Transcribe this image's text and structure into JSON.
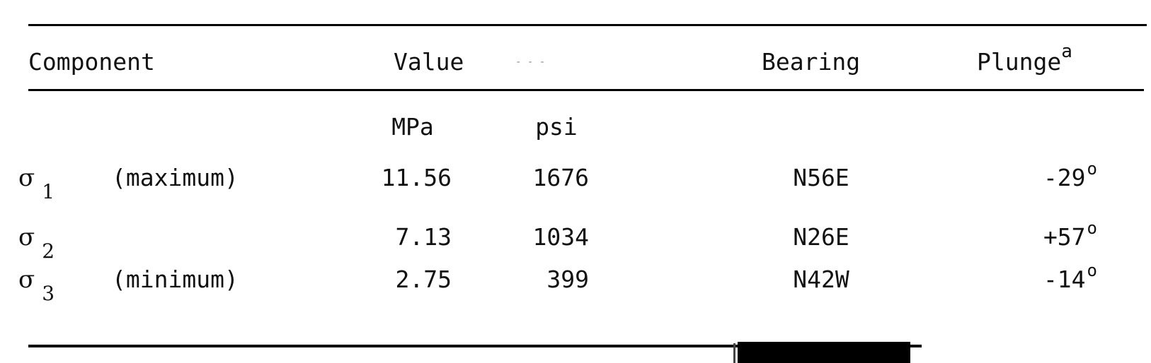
{
  "table": {
    "headers": {
      "component": "Component",
      "value": "Value",
      "bearing": "Bearing",
      "plunge": "Plunge",
      "plunge_note": "a"
    },
    "units": {
      "mpa": "MPa",
      "psi": "psi"
    },
    "rows": [
      {
        "symbol": "σ",
        "sub": "1",
        "desc": "(maximum)",
        "mpa": "11.56",
        "psi": "1676",
        "bearing": "N56E",
        "plunge": "-29",
        "deg": "o"
      },
      {
        "symbol": "σ",
        "sub": "2",
        "desc": "",
        "mpa": "7.13",
        "psi": "1034",
        "bearing": "N26E",
        "plunge": "+57",
        "deg": "o"
      },
      {
        "symbol": "σ",
        "sub": "3",
        "desc": "(minimum)",
        "mpa": "2.75",
        "psi": "399",
        "bearing": "N42W",
        "plunge": "-14",
        "deg": "o"
      }
    ]
  }
}
